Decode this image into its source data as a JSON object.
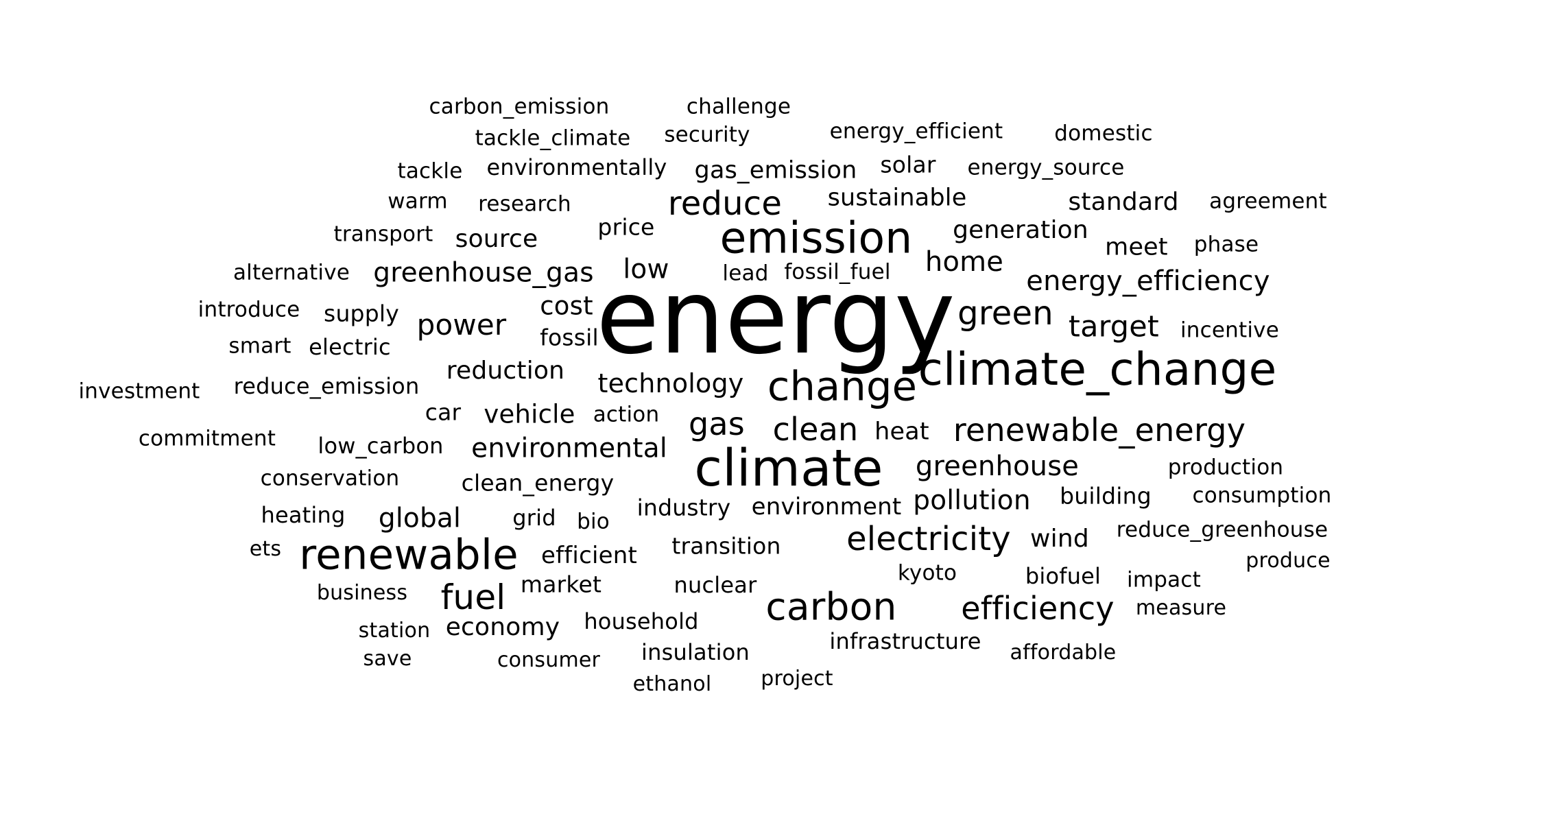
{
  "words": [
    {
      "text": "energy",
      "weight": 1.0
    },
    {
      "text": "climate_change",
      "weight": 0.46
    },
    {
      "text": "emission",
      "weight": 0.44
    },
    {
      "text": "climate",
      "weight": 0.5
    },
    {
      "text": "change",
      "weight": 0.42
    },
    {
      "text": "renewable",
      "weight": 0.43
    },
    {
      "text": "carbon",
      "weight": 0.39
    },
    {
      "text": "electricity",
      "weight": 0.34
    },
    {
      "text": "efficiency",
      "weight": 0.33
    },
    {
      "text": "renewable_energy",
      "weight": 0.32
    },
    {
      "text": "reduce",
      "weight": 0.32
    },
    {
      "text": "green",
      "weight": 0.32
    },
    {
      "text": "gas",
      "weight": 0.32
    },
    {
      "text": "clean",
      "weight": 0.32
    },
    {
      "text": "fuel",
      "weight": 0.32
    },
    {
      "text": "energy_efficiency",
      "weight": 0.3
    },
    {
      "text": "target",
      "weight": 0.3
    },
    {
      "text": "power",
      "weight": 0.29
    },
    {
      "text": "greenhouse",
      "weight": 0.28
    },
    {
      "text": "home",
      "weight": 0.27
    },
    {
      "text": "technology",
      "weight": 0.26
    },
    {
      "text": "environmental",
      "weight": 0.27
    },
    {
      "text": "global",
      "weight": 0.27
    },
    {
      "text": "pollution",
      "weight": 0.27
    },
    {
      "text": "greenhouse_gas",
      "weight": 0.27
    },
    {
      "text": "low",
      "weight": 0.26
    },
    {
      "text": "generation",
      "weight": 0.26
    },
    {
      "text": "sustainable",
      "weight": 0.25
    },
    {
      "text": "reduction",
      "weight": 0.25
    },
    {
      "text": "vehicle",
      "weight": 0.26
    },
    {
      "text": "standard",
      "weight": 0.25
    },
    {
      "text": "wind",
      "weight": 0.25
    },
    {
      "text": "cost",
      "weight": 0.25
    },
    {
      "text": "economy",
      "weight": 0.25
    },
    {
      "text": "gas_emission",
      "weight": 0.24
    },
    {
      "text": "source",
      "weight": 0.25
    },
    {
      "text": "meet",
      "weight": 0.24
    },
    {
      "text": "environment",
      "weight": 0.24
    },
    {
      "text": "efficient",
      "weight": 0.24
    },
    {
      "text": "market",
      "weight": 0.23
    },
    {
      "text": "building",
      "weight": 0.23
    },
    {
      "text": "heat",
      "weight": 0.24
    },
    {
      "text": "industry",
      "weight": 0.23
    },
    {
      "text": "transition",
      "weight": 0.23
    },
    {
      "text": "clean_energy",
      "weight": 0.23
    },
    {
      "text": "price",
      "weight": 0.23
    },
    {
      "text": "reduce_emission",
      "weight": 0.22
    },
    {
      "text": "low_carbon",
      "weight": 0.22
    },
    {
      "text": "nuclear",
      "weight": 0.22
    },
    {
      "text": "household",
      "weight": 0.22
    },
    {
      "text": "infrastructure",
      "weight": 0.22
    },
    {
      "text": "insulation",
      "weight": 0.22
    },
    {
      "text": "fossil",
      "weight": 0.22
    },
    {
      "text": "environmentally",
      "weight": 0.22
    },
    {
      "text": "tackle_climate",
      "weight": 0.21
    },
    {
      "text": "carbon_emission",
      "weight": 0.21
    },
    {
      "text": "challenge",
      "weight": 0.21
    },
    {
      "text": "security",
      "weight": 0.21
    },
    {
      "text": "energy_efficient",
      "weight": 0.21
    },
    {
      "text": "domestic",
      "weight": 0.21
    },
    {
      "text": "tackle",
      "weight": 0.21
    },
    {
      "text": "solar",
      "weight": 0.22
    },
    {
      "text": "energy_source",
      "weight": 0.21
    },
    {
      "text": "warm",
      "weight": 0.21
    },
    {
      "text": "research",
      "weight": 0.21
    },
    {
      "text": "agreement",
      "weight": 0.21
    },
    {
      "text": "transport",
      "weight": 0.21
    },
    {
      "text": "phase",
      "weight": 0.21
    },
    {
      "text": "alternative",
      "weight": 0.21
    },
    {
      "text": "lead",
      "weight": 0.21
    },
    {
      "text": "fossil_fuel",
      "weight": 0.21
    },
    {
      "text": "introduce",
      "weight": 0.21
    },
    {
      "text": "supply",
      "weight": 0.22
    },
    {
      "text": "incentive",
      "weight": 0.21
    },
    {
      "text": "smart",
      "weight": 0.21
    },
    {
      "text": "electric",
      "weight": 0.22
    },
    {
      "text": "investment",
      "weight": 0.21
    },
    {
      "text": "car",
      "weight": 0.22
    },
    {
      "text": "action",
      "weight": 0.21
    },
    {
      "text": "commitment",
      "weight": 0.21
    },
    {
      "text": "conservation",
      "weight": 0.21
    },
    {
      "text": "production",
      "weight": 0.21
    },
    {
      "text": "heating",
      "weight": 0.21
    },
    {
      "text": "grid",
      "weight": 0.22
    },
    {
      "text": "bio",
      "weight": 0.21
    },
    {
      "text": "consumption",
      "weight": 0.21
    },
    {
      "text": "reduce_greenhouse",
      "weight": 0.21
    },
    {
      "text": "ets",
      "weight": 0.2
    },
    {
      "text": "produce",
      "weight": 0.2
    },
    {
      "text": "kyoto",
      "weight": 0.2
    },
    {
      "text": "biofuel",
      "weight": 0.21
    },
    {
      "text": "impact",
      "weight": 0.2
    },
    {
      "text": "business",
      "weight": 0.2
    },
    {
      "text": "measure",
      "weight": 0.2
    },
    {
      "text": "station",
      "weight": 0.2
    },
    {
      "text": "save",
      "weight": 0.2
    },
    {
      "text": "consumer",
      "weight": 0.2
    },
    {
      "text": "affordable",
      "weight": 0.2
    },
    {
      "text": "ethanol",
      "weight": 0.2
    },
    {
      "text": "project",
      "weight": 0.2
    }
  ]
}
